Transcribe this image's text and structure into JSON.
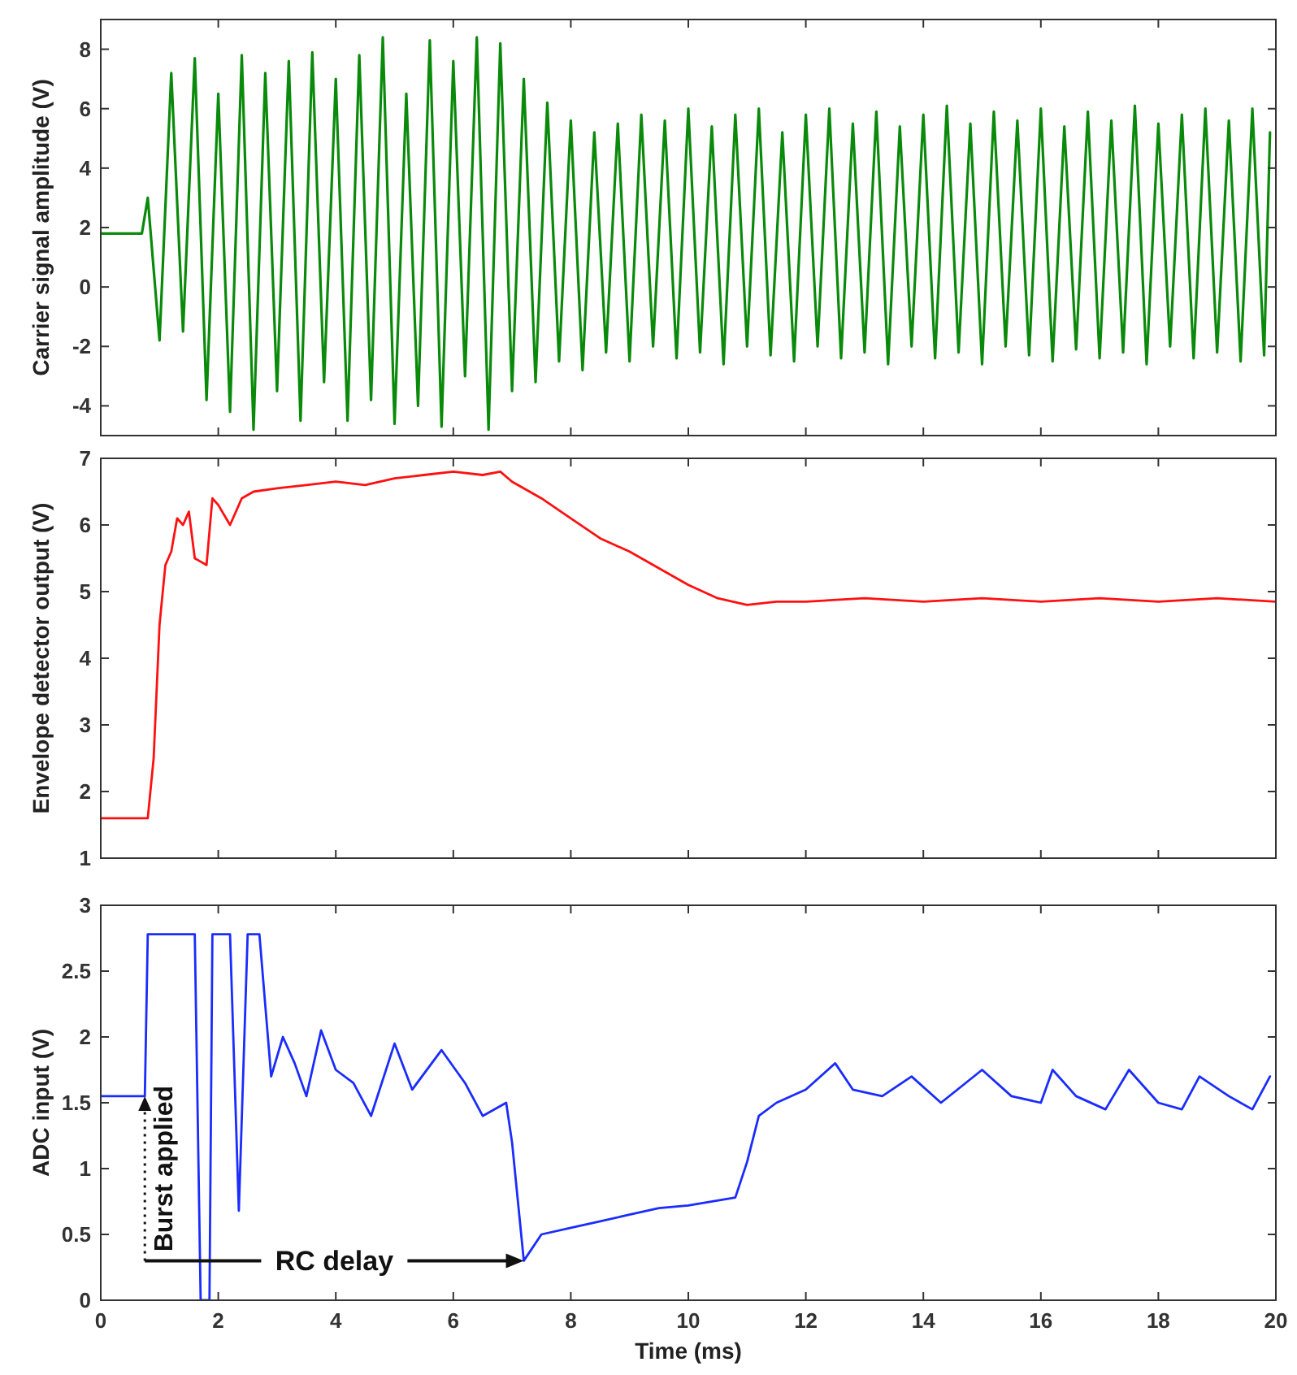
{
  "chart_data": [
    {
      "type": "line",
      "ylabel": "Carrier signal amplitude (V)",
      "xlim": [
        0,
        20
      ],
      "xticks": [
        0,
        2,
        4,
        6,
        8,
        10,
        12,
        14,
        16,
        18,
        20
      ],
      "ylim": [
        -5,
        9
      ],
      "yticks": [
        -4,
        -2,
        0,
        2,
        4,
        6,
        8
      ],
      "tick_labels": "y",
      "grid": false,
      "series": [
        {
          "color": "#0a8a0a",
          "x": [
            0,
            0.7,
            0.8,
            1.0,
            1.2,
            1.4,
            1.6,
            1.8,
            2.0,
            2.2,
            2.4,
            2.6,
            2.8,
            3.0,
            3.2,
            3.4,
            3.6,
            3.8,
            4.0,
            4.2,
            4.4,
            4.6,
            4.8,
            5.0,
            5.2,
            5.4,
            5.6,
            5.8,
            6.0,
            6.2,
            6.4,
            6.6,
            6.8,
            7.0,
            7.2,
            7.4,
            7.6,
            7.8,
            8.0,
            8.2,
            8.4,
            8.6,
            8.8,
            9.0,
            9.2,
            9.4,
            9.6,
            9.8,
            10.0,
            10.2,
            10.4,
            10.6,
            10.8,
            11.0,
            11.2,
            11.4,
            11.6,
            11.8,
            12.0,
            12.2,
            12.4,
            12.6,
            12.8,
            13.0,
            13.2,
            13.4,
            13.6,
            13.8,
            14.0,
            14.2,
            14.4,
            14.6,
            14.8,
            15.0,
            15.2,
            15.4,
            15.6,
            15.8,
            16.0,
            16.2,
            16.4,
            16.6,
            16.8,
            17.0,
            17.2,
            17.4,
            17.6,
            17.8,
            18.0,
            18.2,
            18.4,
            18.6,
            18.8,
            19.0,
            19.2,
            19.4,
            19.6,
            19.8,
            19.9
          ],
          "values": [
            1.8,
            1.8,
            3,
            -1.8,
            7.2,
            -1.5,
            7.7,
            -3.8,
            6.5,
            -4.2,
            7.8,
            -4.8,
            7.2,
            -3.5,
            7.6,
            -4.5,
            7.9,
            -3.2,
            7.0,
            -4.5,
            7.8,
            -3.8,
            8.4,
            -4.6,
            6.5,
            -4.0,
            8.3,
            -4.7,
            7.6,
            -3.0,
            8.4,
            -4.8,
            8.2,
            -3.5,
            7.0,
            -3.2,
            6.2,
            -2.5,
            5.6,
            -2.8,
            5.2,
            -2.2,
            5.5,
            -2.5,
            5.8,
            -2.0,
            5.6,
            -2.4,
            6.0,
            -2.2,
            5.4,
            -2.6,
            5.8,
            -2.0,
            6.0,
            -2.3,
            5.2,
            -2.5,
            5.8,
            -2.0,
            6.0,
            -2.4,
            5.5,
            -2.2,
            5.9,
            -2.6,
            5.4,
            -2.0,
            5.8,
            -2.4,
            6.1,
            -2.2,
            5.5,
            -2.6,
            5.9,
            -2.0,
            5.6,
            -2.3,
            6.0,
            -2.5,
            5.4,
            -2.1,
            5.9,
            -2.4,
            5.6,
            -2.2,
            6.1,
            -2.6,
            5.5,
            -2.0,
            5.8,
            -2.4,
            6.0,
            -2.2,
            5.6,
            -2.5,
            6.0,
            -2.3,
            5.2
          ]
        }
      ]
    },
    {
      "type": "line",
      "ylabel": "Envelope detector output (V)",
      "xlim": [
        0,
        20
      ],
      "xticks": [
        0,
        2,
        4,
        6,
        8,
        10,
        12,
        14,
        16,
        18,
        20
      ],
      "ylim": [
        1,
        7
      ],
      "yticks": [
        1,
        2,
        3,
        4,
        5,
        6,
        7
      ],
      "tick_labels": "y",
      "grid": false,
      "series": [
        {
          "color": "#ff1010",
          "x": [
            0,
            0.8,
            0.9,
            1.0,
            1.1,
            1.2,
            1.3,
            1.4,
            1.5,
            1.6,
            1.7,
            1.8,
            1.9,
            2.0,
            2.2,
            2.4,
            2.6,
            3,
            3.5,
            4,
            4.5,
            5,
            5.5,
            6,
            6.5,
            6.8,
            7,
            7.5,
            8,
            8.5,
            9,
            9.5,
            10,
            10.5,
            11,
            11.5,
            12,
            13,
            14,
            15,
            16,
            17,
            18,
            19,
            20
          ],
          "values": [
            1.6,
            1.6,
            2.5,
            4.5,
            5.4,
            5.6,
            6.1,
            6.0,
            6.2,
            5.5,
            5.45,
            5.4,
            6.4,
            6.3,
            6.0,
            6.4,
            6.5,
            6.55,
            6.6,
            6.65,
            6.6,
            6.7,
            6.75,
            6.8,
            6.75,
            6.8,
            6.65,
            6.4,
            6.1,
            5.8,
            5.6,
            5.35,
            5.1,
            4.9,
            4.8,
            4.85,
            4.85,
            4.9,
            4.85,
            4.9,
            4.85,
            4.9,
            4.85,
            4.9,
            4.85
          ]
        }
      ]
    },
    {
      "type": "line",
      "xlabel": "Time (ms)",
      "ylabel": "ADC input (V)",
      "xlim": [
        0,
        20
      ],
      "xticks": [
        0,
        2,
        4,
        6,
        8,
        10,
        12,
        14,
        16,
        18,
        20
      ],
      "ylim": [
        0,
        3
      ],
      "yticks": [
        0,
        0.5,
        1,
        1.5,
        2,
        2.5,
        3
      ],
      "grid": false,
      "annotations": [
        {
          "text": "Burst applied",
          "x": 0.75,
          "y": 1.55
        },
        "RC delay"
      ],
      "series": [
        {
          "color": "#1a2cff",
          "x": [
            0,
            0.75,
            0.8,
            1.6,
            1.7,
            1.85,
            1.9,
            2.2,
            2.35,
            2.5,
            2.7,
            2.9,
            3.1,
            3.3,
            3.5,
            3.75,
            4,
            4.3,
            4.6,
            5,
            5.3,
            5.8,
            6.2,
            6.5,
            6.9,
            7.0,
            7.2,
            7.5,
            8,
            8.5,
            9,
            9.5,
            10,
            10.8,
            11.0,
            11.2,
            11.5,
            12,
            12.5,
            12.8,
            13.3,
            13.8,
            14.3,
            15,
            15.5,
            16,
            16.2,
            16.6,
            17.1,
            17.5,
            18,
            18.4,
            18.7,
            19.2,
            19.6,
            19.9
          ],
          "values": [
            1.55,
            1.55,
            2.78,
            2.78,
            0,
            0,
            2.78,
            2.78,
            0.68,
            2.78,
            2.78,
            1.7,
            2.0,
            1.8,
            1.55,
            2.05,
            1.75,
            1.65,
            1.4,
            1.95,
            1.6,
            1.9,
            1.65,
            1.4,
            1.5,
            1.2,
            0.3,
            0.5,
            0.55,
            0.6,
            0.65,
            0.7,
            0.72,
            0.78,
            1.05,
            1.4,
            1.5,
            1.6,
            1.8,
            1.6,
            1.55,
            1.7,
            1.5,
            1.75,
            1.55,
            1.5,
            1.75,
            1.55,
            1.45,
            1.75,
            1.5,
            1.45,
            1.7,
            1.55,
            1.45,
            1.7
          ]
        }
      ]
    }
  ]
}
